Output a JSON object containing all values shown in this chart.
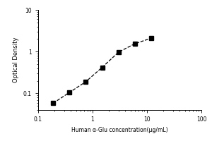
{
  "title": "",
  "xlabel": "Human α-Glu concentration(μg/mL)",
  "ylabel": "Optical Density",
  "x_data": [
    0.188,
    0.375,
    0.75,
    1.5,
    3.0,
    6.0,
    12.0
  ],
  "y_data": [
    0.058,
    0.105,
    0.19,
    0.42,
    0.97,
    1.55,
    2.1
  ],
  "xlim": [
    0.1,
    100
  ],
  "ylim": [
    0.04,
    10
  ],
  "marker": "s",
  "marker_color": "black",
  "marker_size": 4,
  "line_style": "--",
  "line_color": "black",
  "line_width": 0.9,
  "background_color": "#ffffff",
  "xlabel_fontsize": 5.5,
  "ylabel_fontsize": 6,
  "tick_fontsize": 5.5
}
